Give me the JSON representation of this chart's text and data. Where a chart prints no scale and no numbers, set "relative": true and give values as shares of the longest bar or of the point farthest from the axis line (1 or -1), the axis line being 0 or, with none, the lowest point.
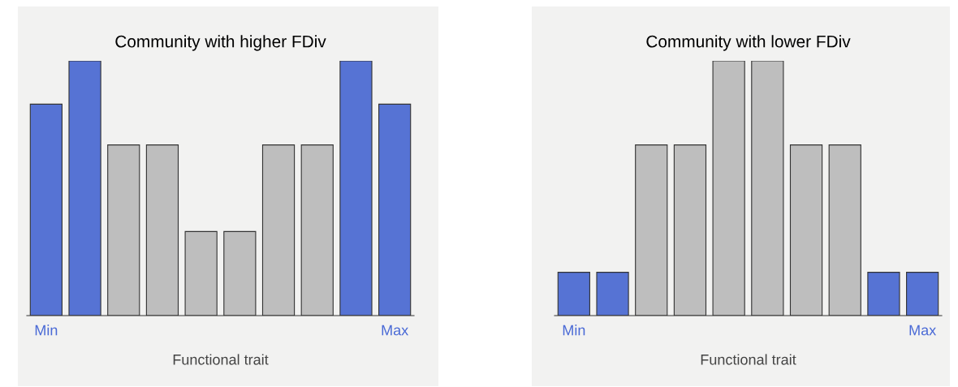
{
  "chart_data": [
    {
      "type": "bar",
      "title": "Community with higher FDiv",
      "xlabel": "Functional trait",
      "relative": true,
      "categories": [
        "Min",
        null,
        null,
        null,
        null,
        null,
        null,
        null,
        null,
        "Max"
      ],
      "values": [
        0.83,
        1,
        0.67,
        0.67,
        0.33,
        0.33,
        0.67,
        0.67,
        1,
        0.83
      ],
      "colors": [
        "#5673d4",
        "#5673d4",
        "#bebebe",
        "#bebebe",
        "#bebebe",
        "#bebebe",
        "#bebebe",
        "#bebebe",
        "#5673d4",
        "#5673d4"
      ],
      "grid": false,
      "legend": false
    },
    {
      "type": "bar",
      "title": "Community with lower FDiv",
      "xlabel": "Functional trait",
      "relative": true,
      "categories": [
        "Min",
        null,
        null,
        null,
        null,
        null,
        null,
        null,
        null,
        "Max"
      ],
      "values": [
        0.17,
        0.17,
        0.67,
        0.67,
        1,
        1,
        0.67,
        0.67,
        0.17,
        0.17
      ],
      "colors": [
        "#5673d4",
        "#5673d4",
        "#bebebe",
        "#bebebe",
        "#bebebe",
        "#bebebe",
        "#bebebe",
        "#bebebe",
        "#5673d4",
        "#5673d4"
      ],
      "grid": false,
      "legend": false
    }
  ]
}
